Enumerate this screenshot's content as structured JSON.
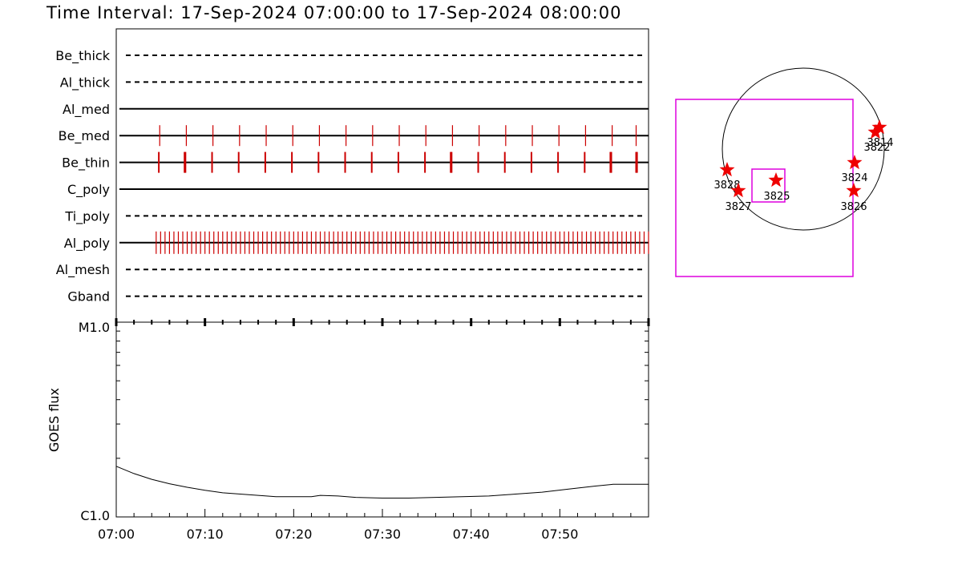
{
  "title": "Time Interval: 17-Sep-2024 07:00:00 to 17-Sep-2024 08:00:00",
  "colors": {
    "axis": "#000000",
    "event": "#cc0000",
    "box": "#dd00dd",
    "star": "#ee0000"
  },
  "filters": [
    {
      "name": "Be_thick",
      "style": "dashed",
      "events": []
    },
    {
      "name": "Al_thick",
      "style": "dashed",
      "events": []
    },
    {
      "name": "Al_med",
      "style": "solid",
      "events": []
    },
    {
      "name": "Be_med",
      "style": "solid",
      "events": [
        4.9,
        7.9,
        10.9,
        13.9,
        16.9,
        19.9,
        22.9,
        25.9,
        28.9,
        31.9,
        34.9,
        37.9,
        40.9,
        43.9,
        46.9,
        49.9,
        52.9,
        55.9,
        58.6
      ]
    },
    {
      "name": "Be_thin",
      "style": "solid",
      "events": [
        4.8,
        7.7,
        7.8,
        10.8,
        13.8,
        16.8,
        19.8,
        22.8,
        25.8,
        28.8,
        31.8,
        34.8,
        37.7,
        37.8,
        40.8,
        43.8,
        46.8,
        49.8,
        52.8,
        55.7,
        55.8,
        58.6,
        58.7
      ]
    },
    {
      "name": "C_poly",
      "style": "solid",
      "events": []
    },
    {
      "name": "Ti_poly",
      "style": "dashed",
      "events": []
    },
    {
      "name": "Al_poly",
      "style": "solid",
      "events": {
        "start": 4.5,
        "end": 60.0,
        "step": 0.5
      }
    },
    {
      "name": "Al_mesh",
      "style": "dashed",
      "events": []
    },
    {
      "name": "Gband",
      "style": "dashed",
      "events": []
    }
  ],
  "chart_data": {
    "type": "line",
    "xlabel": "",
    "ylabel": "GOES flux",
    "x_unit": "minutes after 07:00",
    "xlim": [
      0,
      60
    ],
    "ylim_labels": [
      "C1.0",
      "M1.0"
    ],
    "x_ticks": [
      "07:00",
      "07:10",
      "07:20",
      "07:30",
      "07:40",
      "07:50"
    ],
    "log_scale": true,
    "ylim": [
      1e-06,
      1e-05
    ],
    "series": [
      {
        "x": [
          0,
          2,
          4,
          6,
          8,
          10,
          12,
          14,
          16,
          18,
          20,
          22,
          23,
          25,
          27,
          30,
          33,
          36,
          39,
          42,
          45,
          48,
          51,
          54,
          56,
          58,
          60
        ],
        "y": [
          1.82e-06,
          1.67e-06,
          1.56e-06,
          1.48e-06,
          1.42e-06,
          1.37e-06,
          1.33e-06,
          1.31e-06,
          1.29e-06,
          1.27e-06,
          1.27e-06,
          1.27e-06,
          1.29e-06,
          1.28e-06,
          1.26e-06,
          1.25e-06,
          1.25e-06,
          1.26e-06,
          1.27e-06,
          1.28e-06,
          1.31e-06,
          1.34e-06,
          1.39e-06,
          1.44e-06,
          1.47e-06,
          1.47e-06,
          1.47e-06
        ]
      }
    ]
  },
  "sun_map": {
    "regions": [
      {
        "label": "3814",
        "star": true
      },
      {
        "label": "3822",
        "star": true
      },
      {
        "label": "3824",
        "star": true
      },
      {
        "label": "3826",
        "star": true
      },
      {
        "label": "3825",
        "star": true
      },
      {
        "label": "3828",
        "star": true
      },
      {
        "label": "3827",
        "star": true
      }
    ]
  }
}
